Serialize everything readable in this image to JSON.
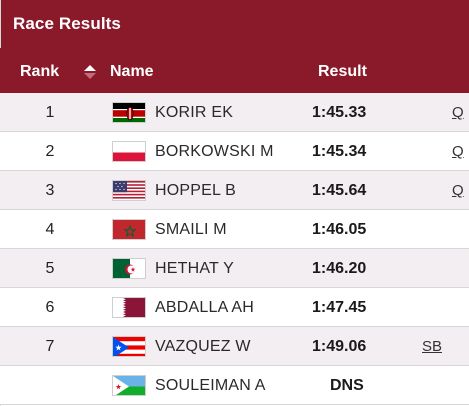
{
  "window": {
    "title": "Race Results"
  },
  "table": {
    "columns": {
      "rank": "Rank",
      "name": "Name",
      "result": "Result"
    },
    "sort": {
      "column": "rank",
      "direction": "ascending"
    },
    "rows": [
      {
        "rank": "1",
        "country": "Kenya",
        "flag_icon": "flag-kenya-icon",
        "name": "KORIR EK",
        "result": "1:45.33",
        "note": "Q"
      },
      {
        "rank": "2",
        "country": "Poland",
        "flag_icon": "flag-poland-icon",
        "name": "BORKOWSKI M",
        "result": "1:45.34",
        "note": "Q"
      },
      {
        "rank": "3",
        "country": "United States",
        "flag_icon": "flag-usa-icon",
        "name": "HOPPEL B",
        "result": "1:45.64",
        "note": "Q"
      },
      {
        "rank": "4",
        "country": "Morocco",
        "flag_icon": "flag-morocco-icon",
        "name": "SMAILI M",
        "result": "1:46.05",
        "note": ""
      },
      {
        "rank": "5",
        "country": "Algeria",
        "flag_icon": "flag-algeria-icon",
        "name": "HETHAT Y",
        "result": "1:46.20",
        "note": ""
      },
      {
        "rank": "6",
        "country": "Qatar",
        "flag_icon": "flag-qatar-icon",
        "name": "ABDALLA AH",
        "result": "1:47.45",
        "note": ""
      },
      {
        "rank": "7",
        "country": "Puerto Rico",
        "flag_icon": "flag-puerto-rico-icon",
        "name": "VAZQUEZ W",
        "result": "1:49.06",
        "note": "SB"
      },
      {
        "rank": "",
        "country": "Djibouti",
        "flag_icon": "flag-djibouti-icon",
        "name": "SOULEIMAN A",
        "result": "DNS",
        "note": ""
      }
    ]
  },
  "colors": {
    "header_bg": "#8a1a2a",
    "row_alt_bg": "#f3eef2",
    "row_bg": "#ffffff"
  }
}
